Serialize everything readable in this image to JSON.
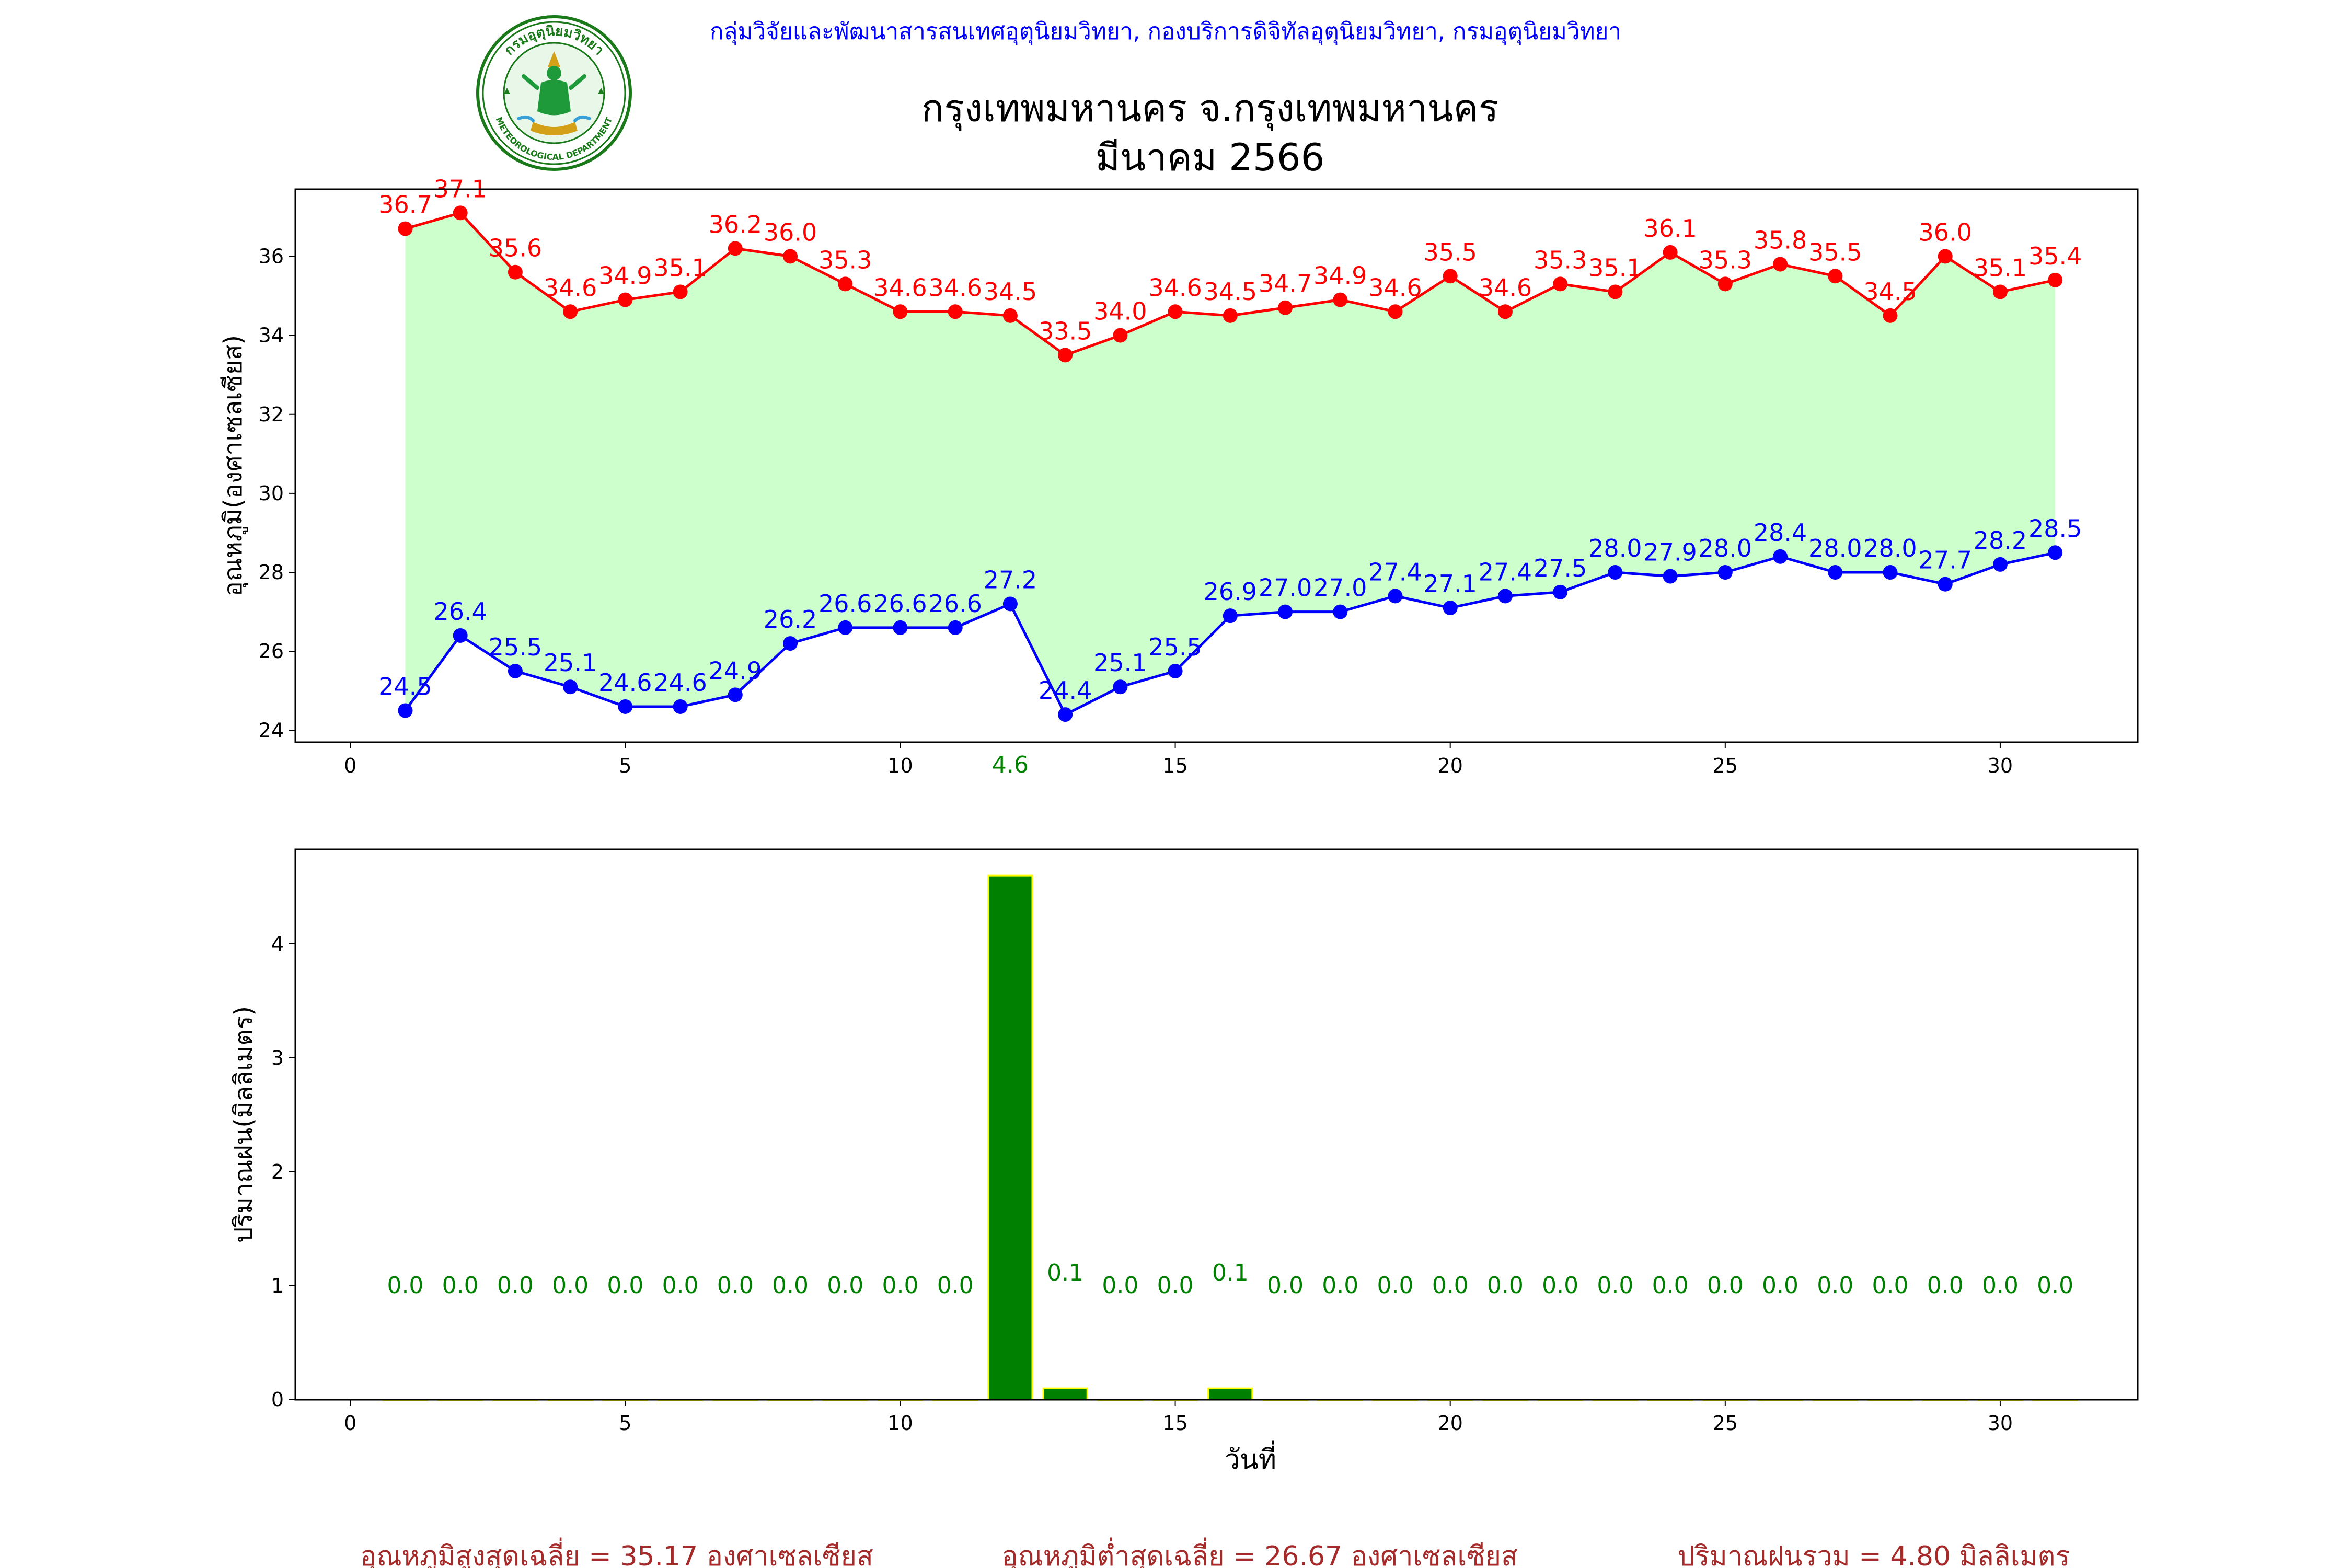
{
  "header": {
    "org_line": "กลุ่มวิจัยและพัฒนาสารสนเทศอุตุนิยมวิทยา, กองบริการดิจิทัลอุตุนิยมวิทยา, กรมอุตุนิยมวิทยา",
    "title_line1": "กรุงเทพมหานคร จ.กรุงเทพมหานคร",
    "title_line2": "มีนาคม 2566",
    "logo_text_top": "กรมอุตุนิยมวิทยา",
    "logo_text_bottom": "METEOROLOGICAL DEPARTMENT"
  },
  "colors": {
    "max_temp": "#ff0000",
    "min_temp": "#0000ff",
    "fill": "#ccffcc",
    "rain_bar": "#008000",
    "rain_edge": "#ffff00",
    "rain_label": "#008000",
    "org_line": "#0000ff",
    "footer": "#a52a2a"
  },
  "chart_data": [
    {
      "type": "line",
      "ylabel": "อุณหภูมิ(องศาเซลเซียส)",
      "xlim": [
        -1,
        32.5
      ],
      "ylim": [
        23.7,
        37.7
      ],
      "x_ticks": [
        0,
        5,
        10,
        15,
        20,
        25,
        30
      ],
      "y_ticks": [
        24,
        26,
        28,
        30,
        32,
        34,
        36
      ],
      "x": [
        1,
        2,
        3,
        4,
        5,
        6,
        7,
        8,
        9,
        10,
        11,
        12,
        13,
        14,
        15,
        16,
        17,
        18,
        19,
        20,
        21,
        22,
        23,
        24,
        25,
        26,
        27,
        28,
        29,
        30,
        31
      ],
      "series": [
        {
          "key": "max",
          "values": [
            36.7,
            37.1,
            35.6,
            34.6,
            34.9,
            35.1,
            36.2,
            36.0,
            35.3,
            34.6,
            34.6,
            34.5,
            33.5,
            34.0,
            34.6,
            34.5,
            34.7,
            34.9,
            34.6,
            35.5,
            34.6,
            35.3,
            35.1,
            36.1,
            35.3,
            35.8,
            35.5,
            34.5,
            36.0,
            35.1,
            35.4
          ]
        },
        {
          "key": "min",
          "values": [
            24.5,
            26.4,
            25.5,
            25.1,
            24.6,
            24.6,
            24.9,
            26.2,
            26.6,
            26.6,
            26.6,
            27.2,
            24.4,
            25.1,
            25.5,
            26.9,
            27.0,
            27.0,
            27.4,
            27.1,
            27.4,
            27.5,
            28.0,
            27.9,
            28.0,
            28.4,
            28.0,
            28.0,
            27.7,
            28.2,
            28.5
          ]
        }
      ],
      "annotation": {
        "x": 12,
        "text": "4.6"
      }
    },
    {
      "type": "bar",
      "xlabel": "วันที่",
      "ylabel": "ปริมาณฝน(มิลลิเมตร)",
      "xlim": [
        -1,
        32.5
      ],
      "ylim": [
        0,
        4.83
      ],
      "x_ticks": [
        0,
        5,
        10,
        15,
        20,
        25,
        30
      ],
      "y_ticks": [
        0,
        1,
        2,
        3,
        4
      ],
      "categories": [
        1,
        2,
        3,
        4,
        5,
        6,
        7,
        8,
        9,
        10,
        11,
        12,
        13,
        14,
        15,
        16,
        17,
        18,
        19,
        20,
        21,
        22,
        23,
        24,
        25,
        26,
        27,
        28,
        29,
        30,
        31
      ],
      "values": [
        0.0,
        0.0,
        0.0,
        0.0,
        0.0,
        0.0,
        0.0,
        0.0,
        0.0,
        0.0,
        0.0,
        4.6,
        0.1,
        0.0,
        0.0,
        0.1,
        0.0,
        0.0,
        0.0,
        0.0,
        0.0,
        0.0,
        0.0,
        0.0,
        0.0,
        0.0,
        0.0,
        0.0,
        0.0,
        0.0,
        0.0
      ],
      "labels": [
        "0.0",
        "0.0",
        "0.0",
        "0.0",
        "0.0",
        "0.0",
        "0.0",
        "0.0",
        "0.0",
        "0.0",
        "0.0",
        "",
        "0.1",
        "0.0",
        "0.0",
        "0.1",
        "0.0",
        "0.0",
        "0.0",
        "0.0",
        "0.0",
        "0.0",
        "0.0",
        "0.0",
        "0.0",
        "0.0",
        "0.0",
        "0.0",
        "0.0",
        "0.0",
        "0.0"
      ]
    }
  ],
  "footer": {
    "avg_max": "อุณหภูมิสูงสุดเฉลี่ย = 35.17 องศาเซลเซียส",
    "avg_min": "อุณหภูมิต่ำสุดเฉลี่ย = 26.67 องศาเซลเซียส",
    "total_rain": "ปริมาณฝนรวม = 4.80 มิลลิเมตร"
  }
}
